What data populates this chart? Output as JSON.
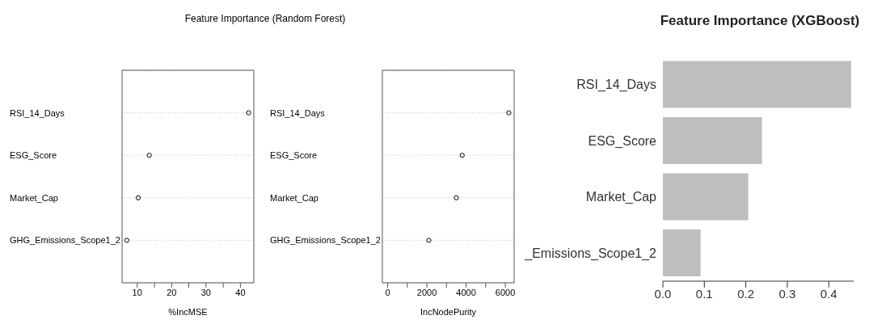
{
  "chart_data": [
    {
      "type": "scatter",
      "title": "Feature Importance (Random Forest)",
      "orientation": "horizontal",
      "categories": [
        "RSI_14_Days",
        "ESG_Score",
        "Market_Cap",
        "GHG_Emissions_Scope1_2"
      ],
      "values": [
        42.4,
        13.5,
        10.3,
        7.0
      ],
      "color": "#000000",
      "marker": "circle",
      "grid": "y",
      "xlabel": "%IncMSE",
      "xlim": [
        5.6,
        43.9
      ],
      "xticks": [
        10,
        {
          "value": 15,
          "label": null
        },
        20,
        {
          "value": 25,
          "label": null
        },
        30,
        {
          "value": 35,
          "label": null
        },
        40
      ]
    },
    {
      "type": "scatter",
      "orientation": "horizontal",
      "categories": [
        "RSI_14_Days",
        "ESG_Score",
        "Market_Cap",
        "GHG_Emissions_Scope1_2"
      ],
      "values": [
        6180,
        3800,
        3500,
        2100
      ],
      "color": "#000000",
      "marker": "circle",
      "grid": "y",
      "xlabel": "IncNodePurity",
      "xlim": [
        -270,
        6450
      ],
      "xticks": [
        0,
        {
          "value": 1000,
          "label": null
        },
        2000,
        {
          "value": 3000,
          "label": null
        },
        4000,
        {
          "value": 5000,
          "label": null
        },
        6000
      ]
    },
    {
      "type": "bar",
      "title": "Feature Importance (XGBoost)",
      "orientation": "horizontal",
      "categories": [
        "RSI_14_Days",
        "ESG_Score",
        "Market_Cap",
        "_Emissions_Scope1_2"
      ],
      "values": [
        0.454,
        0.239,
        0.206,
        0.091
      ],
      "color": "#bebebe",
      "xlim": [
        0,
        0.46
      ],
      "xticks": [
        {
          "value": 0,
          "label": "0.0"
        },
        0.1,
        0.2,
        0.3,
        0.4
      ]
    }
  ]
}
